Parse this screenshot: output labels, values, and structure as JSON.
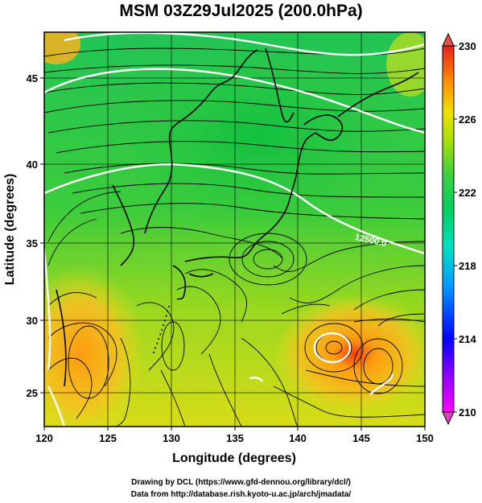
{
  "title": "MSM 03Z29Jul2025 (200.0hPa)",
  "map": {
    "x_axis_label": "Longitude (degrees)",
    "y_axis_label": "Latitude  (degrees)",
    "lon_range": [
      120,
      150
    ],
    "lat_range": [
      22.4,
      47.6
    ],
    "lon_ticks": [
      "120",
      "125",
      "130",
      "135",
      "140",
      "145",
      "150"
    ],
    "lat_ticks": [
      "25",
      "30",
      "35",
      "40",
      "45"
    ],
    "contour_label": "12500.0",
    "field": "temperature (shaded) with wind streamlines and geopotential height contours"
  },
  "colorbar": {
    "min": 210,
    "max": 230,
    "tick_labels": [
      "230",
      "226",
      "222",
      "218",
      "214",
      "210"
    ],
    "top_arrow_color": "#e8504a",
    "bottom_arrow_color": "#e040c0"
  },
  "credits": {
    "line1": "Drawing by DCL (https://www.gfd-dennou.org/library/dcl/)",
    "line2": "Data from http://database.rish.kyoto-u.ac.jp/arch/jmadata/"
  }
}
